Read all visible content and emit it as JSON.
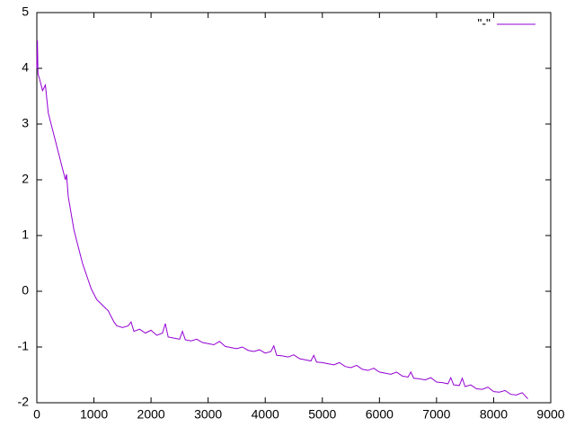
{
  "chart_data": {
    "type": "line",
    "x": [
      0,
      10,
      20,
      50,
      100,
      150,
      200,
      250,
      300,
      350,
      400,
      450,
      500,
      520,
      550,
      600,
      650,
      700,
      750,
      800,
      850,
      900,
      950,
      1000,
      1050,
      1100,
      1150,
      1200,
      1250,
      1300,
      1350,
      1400,
      1500,
      1600,
      1650,
      1700,
      1800,
      1900,
      2000,
      2100,
      2200,
      2250,
      2300,
      2400,
      2500,
      2550,
      2600,
      2700,
      2800,
      2900,
      3000,
      3100,
      3200,
      3300,
      3400,
      3500,
      3600,
      3700,
      3800,
      3900,
      4000,
      4100,
      4150,
      4200,
      4300,
      4400,
      4500,
      4600,
      4700,
      4800,
      4850,
      4900,
      5000,
      5100,
      5200,
      5300,
      5400,
      5500,
      5600,
      5700,
      5800,
      5900,
      6000,
      6100,
      6200,
      6300,
      6400,
      6500,
      6550,
      6600,
      6700,
      6800,
      6900,
      7000,
      7100,
      7200,
      7250,
      7300,
      7400,
      7450,
      7500,
      7600,
      7700,
      7800,
      7900,
      8000,
      8100,
      8200,
      8300,
      8400,
      8500,
      8600
    ],
    "series": [
      {
        "name": "\"-\"",
        "color": "#9400d3",
        "values": [
          4.0,
          4.5,
          3.9,
          3.8,
          3.6,
          3.7,
          3.2,
          3.0,
          2.8,
          2.6,
          2.4,
          2.2,
          2.0,
          2.1,
          1.7,
          1.4,
          1.1,
          0.9,
          0.7,
          0.5,
          0.35,
          0.2,
          0.05,
          -0.05,
          -0.15,
          -0.2,
          -0.25,
          -0.3,
          -0.35,
          -0.45,
          -0.55,
          -0.62,
          -0.65,
          -0.62,
          -0.55,
          -0.72,
          -0.68,
          -0.75,
          -0.7,
          -0.79,
          -0.75,
          -0.58,
          -0.82,
          -0.84,
          -0.86,
          -0.72,
          -0.87,
          -0.89,
          -0.86,
          -0.92,
          -0.94,
          -0.96,
          -0.9,
          -0.99,
          -1.01,
          -1.03,
          -1.0,
          -1.06,
          -1.08,
          -1.05,
          -1.11,
          -1.08,
          -0.98,
          -1.15,
          -1.16,
          -1.18,
          -1.14,
          -1.21,
          -1.23,
          -1.25,
          -1.15,
          -1.27,
          -1.28,
          -1.3,
          -1.32,
          -1.28,
          -1.35,
          -1.37,
          -1.33,
          -1.4,
          -1.42,
          -1.38,
          -1.45,
          -1.47,
          -1.49,
          -1.45,
          -1.52,
          -1.54,
          -1.45,
          -1.56,
          -1.57,
          -1.59,
          -1.55,
          -1.63,
          -1.64,
          -1.66,
          -1.55,
          -1.68,
          -1.69,
          -1.56,
          -1.71,
          -1.68,
          -1.75,
          -1.76,
          -1.72,
          -1.8,
          -1.81,
          -1.78,
          -1.85,
          -1.86,
          -1.82,
          -1.93
        ]
      }
    ],
    "xlim": [
      0,
      9000
    ],
    "xticks": [
      0,
      1000,
      2000,
      3000,
      4000,
      5000,
      6000,
      7000,
      8000,
      9000
    ],
    "ylim": [
      -2,
      5
    ],
    "yticks": [
      -2,
      -1,
      0,
      1,
      2,
      3,
      4,
      5
    ],
    "legend": "top-right",
    "grid": false
  }
}
